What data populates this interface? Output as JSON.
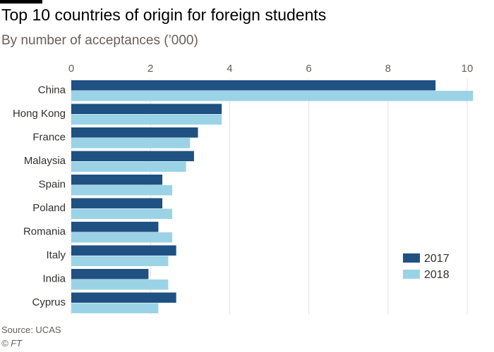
{
  "header": {
    "title": "Top 10 countries of origin for foreign students",
    "subtitle": "By number of acceptances (’000)"
  },
  "footer": {
    "source": "Source: UCAS",
    "credit": "© FT"
  },
  "colors": {
    "series_2017": "#1f5183",
    "series_2018": "#9bd3e6",
    "grid": "#e6e2de",
    "text": "#33302e"
  },
  "chart_data": {
    "type": "bar",
    "orientation": "horizontal",
    "title": "Top 10 countries of origin for foreign students",
    "subtitle": "By number of acceptances (’000)",
    "xlabel": "",
    "ylabel": "",
    "xlim": [
      0,
      10
    ],
    "x_ticks": [
      0,
      2,
      4,
      6,
      8,
      10
    ],
    "grid": true,
    "legend_position": "bottom-right",
    "categories": [
      "China",
      "Hong Kong",
      "France",
      "Malaysia",
      "Spain",
      "Poland",
      "Romania",
      "Italy",
      "India",
      "Cyprus"
    ],
    "series": [
      {
        "name": "2017",
        "color": "#1f5183",
        "values": [
          9.2,
          3.8,
          3.2,
          3.1,
          2.3,
          2.3,
          2.2,
          2.65,
          1.95,
          2.65
        ]
      },
      {
        "name": "2018",
        "color": "#9bd3e6",
        "values": [
          10.15,
          3.8,
          3.0,
          2.9,
          2.55,
          2.55,
          2.55,
          2.45,
          2.45,
          2.2
        ]
      }
    ]
  }
}
